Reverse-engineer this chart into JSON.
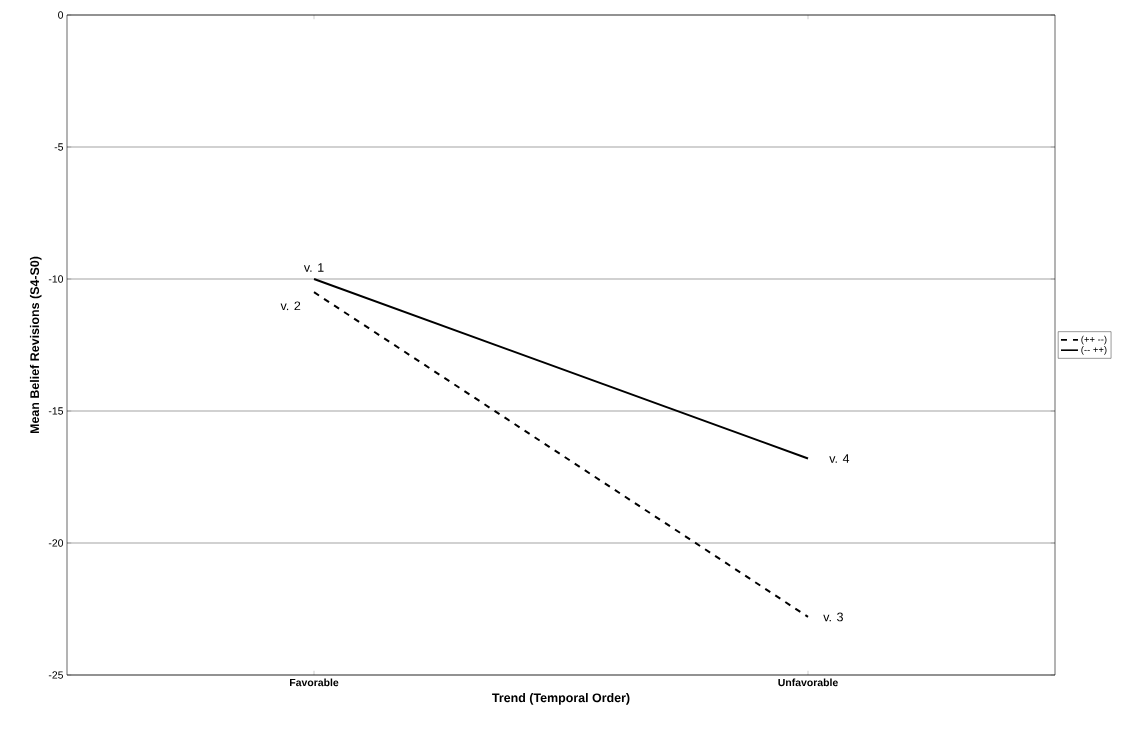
{
  "chart_data": {
    "type": "line",
    "xlabel": "Trend (Temporal Order)",
    "ylabel": "Mean Belief Revisions (S4-S0)",
    "categories": [
      "Favorable",
      "Unfavorable"
    ],
    "series": [
      {
        "name": "(++ --)",
        "color": "#000000",
        "line_style": "dashed",
        "values": [
          -10.5,
          -22.8
        ]
      },
      {
        "name": "(-- ++)",
        "color": "#000000",
        "line_style": "solid",
        "values": [
          -10,
          -16.8
        ]
      }
    ],
    "ylim": [
      -25,
      0
    ],
    "yticks": [
      -25,
      -20,
      -15,
      -10,
      -5,
      0
    ],
    "grid": "y",
    "legend": "right",
    "marker": "none",
    "annotations": [
      {
        "text": "v. 1",
        "x": "Favorable",
        "y": -10
      },
      {
        "text": "v. 2",
        "x": "Favorable",
        "y": -10.5
      },
      {
        "text": "v. 4",
        "x": "Unfavorable",
        "y": -16.8
      },
      {
        "text": "v. 3",
        "x": "Unfavorable",
        "y": -22.8
      }
    ]
  }
}
